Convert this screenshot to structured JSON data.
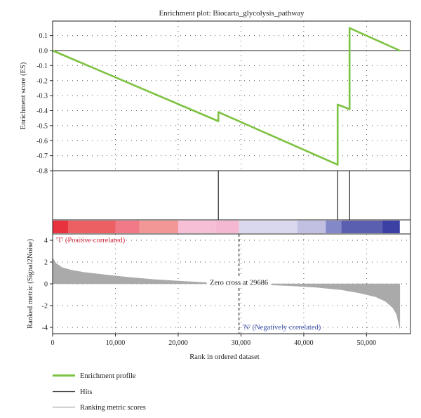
{
  "chart_data": {
    "type": "line",
    "title": "Enrichment plot: Biocarta_glycolysis_pathway",
    "es_panel": {
      "ylabel": "Enrichment score (ES)",
      "ylim": [
        -0.8,
        0.15
      ],
      "yticks": [
        "0.1",
        "0.0",
        "-0.1",
        "-0.2",
        "-0.3",
        "-0.4",
        "-0.5",
        "-0.6",
        "-0.7",
        "-0.8"
      ],
      "ytick_values": [
        0.1,
        0.0,
        -0.1,
        -0.2,
        -0.3,
        -0.4,
        -0.5,
        -0.6,
        -0.7,
        -0.8
      ],
      "series": [
        {
          "name": "Enrichment profile",
          "color": "#7dc242",
          "x": [
            0,
            26400,
            26400,
            45400,
            45400,
            47300,
            47300,
            55300
          ],
          "y": [
            0.0,
            -0.47,
            -0.41,
            -0.76,
            -0.36,
            -0.39,
            0.15,
            0.0
          ]
        }
      ]
    },
    "hits_panel": {
      "color": "#222222",
      "positions": [
        26400,
        45400,
        47300
      ]
    },
    "color_bar": {
      "segments": [
        {
          "from": 0,
          "to": 2500,
          "color": "#e8333f"
        },
        {
          "from": 2500,
          "to": 10000,
          "color": "#ec5f62"
        },
        {
          "from": 10000,
          "to": 13800,
          "color": "#f07a86"
        },
        {
          "from": 13800,
          "to": 20000,
          "color": "#f29696"
        },
        {
          "from": 20000,
          "to": 26000,
          "color": "#f7bfd6"
        },
        {
          "from": 26000,
          "to": 29700,
          "color": "#f4b8d2"
        },
        {
          "from": 29700,
          "to": 39000,
          "color": "#d9d8ee"
        },
        {
          "from": 39000,
          "to": 43500,
          "color": "#c2c0e2"
        },
        {
          "from": 43500,
          "to": 46000,
          "color": "#8288c8"
        },
        {
          "from": 46000,
          "to": 52500,
          "color": "#5a5fb0"
        },
        {
          "from": 52500,
          "to": 55300,
          "color": "#3c3fa4"
        }
      ]
    },
    "metric_panel": {
      "ylabel": "Ranked metric (Signal2Noise)",
      "ylim": [
        -4.3,
        4.3
      ],
      "yticks": [
        "4",
        "2",
        "0",
        "-2",
        "-4"
      ],
      "ytick_values": [
        4,
        2,
        0,
        -2,
        -4
      ],
      "color": "#aaaaaa",
      "curve_x": [
        0,
        500,
        1500,
        3000,
        5000,
        8000,
        12000,
        16000,
        20000,
        24000,
        28000,
        31000,
        34000,
        38000,
        42000,
        46000,
        49000,
        51500,
        53000,
        54200,
        54800,
        55300
      ],
      "curve_y": [
        2.4,
        1.9,
        1.5,
        1.25,
        1.05,
        0.85,
        0.6,
        0.4,
        0.25,
        0.12,
        0.04,
        -0.02,
        -0.08,
        -0.18,
        -0.32,
        -0.55,
        -0.85,
        -1.2,
        -1.6,
        -2.2,
        -2.8,
        -4.1
      ],
      "zero_cross_x": 29686,
      "zero_cross_label": "Zero cross at 29686",
      "positive_label": "'T' (Positive correlated)",
      "negative_label": "'N' (Negatively correlated)"
    },
    "x_axis": {
      "label": "Rank in ordered dataset",
      "xlim": [
        0,
        57000
      ],
      "ticks": [
        "0",
        "10,000",
        "20,000",
        "30,000",
        "40,000",
        "50,000"
      ],
      "tick_values": [
        0,
        10000,
        20000,
        30000,
        40000,
        50000
      ]
    },
    "grid": true,
    "legend": {
      "placement": "bottom-left",
      "entries": [
        {
          "label": "Enrichment profile",
          "color": "#7dc242"
        },
        {
          "label": "Hits",
          "color": "#222222"
        },
        {
          "label": "Ranking metric scores",
          "color": "#aaaaaa"
        }
      ]
    }
  }
}
